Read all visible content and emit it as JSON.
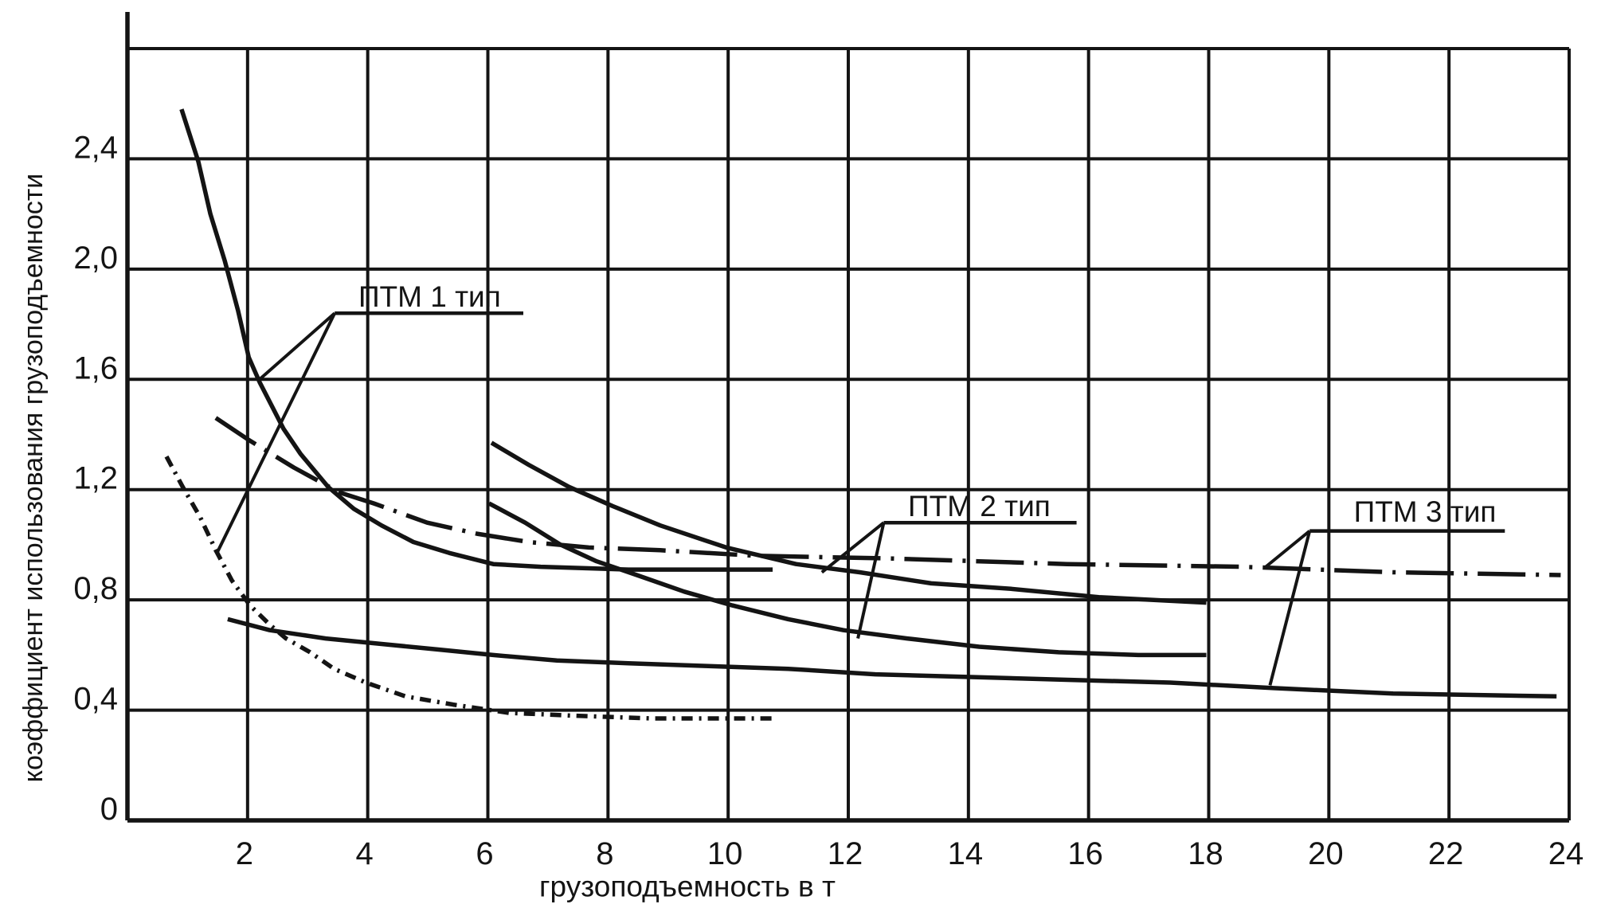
{
  "chart_data": {
    "type": "line",
    "title": "",
    "xlabel": "грузоподъемность в т",
    "ylabel": "коэффициент использования грузоподъемности",
    "xlim": [
      0,
      24
    ],
    "ylim": [
      0,
      2.8
    ],
    "grid": true,
    "legend_position": "none",
    "decimal_separator": ",",
    "ink_color": "#141414",
    "background_color": "#ffffff",
    "x_ticks": [
      {
        "t": 2,
        "label": "2"
      },
      {
        "t": 4,
        "label": "4"
      },
      {
        "t": 6,
        "label": "6"
      },
      {
        "t": 8,
        "label": "8"
      },
      {
        "t": 10,
        "label": "10"
      },
      {
        "t": 12,
        "label": "12"
      },
      {
        "t": 14,
        "label": "14"
      },
      {
        "t": 16,
        "label": "16"
      },
      {
        "t": 18,
        "label": "18"
      },
      {
        "t": 20,
        "label": "20"
      },
      {
        "t": 22,
        "label": "22"
      },
      {
        "t": 24,
        "label": "24"
      }
    ],
    "y_ticks": [
      {
        "v": 0,
        "label": "0"
      },
      {
        "v": 0.4,
        "label": "0,4"
      },
      {
        "v": 0.8,
        "label": "0,8"
      },
      {
        "v": 1.2,
        "label": "1,2"
      },
      {
        "v": 1.6,
        "label": "1,6"
      },
      {
        "v": 2.0,
        "label": "2,0"
      },
      {
        "v": 2.4,
        "label": "2,4"
      }
    ],
    "grid_v_values": [
      0.4,
      0.8,
      1.2,
      1.6,
      2.0,
      2.4,
      2.8
    ],
    "grid_t_values": [
      2,
      4,
      6,
      8,
      10,
      12,
      14,
      16,
      18,
      20,
      22,
      24
    ],
    "series": [
      {
        "id": "ptm1-curve-a",
        "group": "ПТМ 1 тип",
        "style": "solid",
        "points": [
          [
            0.9,
            2.58
          ],
          [
            1.18,
            2.39
          ],
          [
            1.38,
            2.2
          ],
          [
            1.62,
            2.03
          ],
          [
            1.84,
            1.85
          ],
          [
            2.02,
            1.68
          ],
          [
            2.2,
            1.59
          ],
          [
            2.6,
            1.42
          ],
          [
            2.88,
            1.33
          ],
          [
            3.34,
            1.21
          ],
          [
            3.77,
            1.13
          ],
          [
            4.23,
            1.07
          ],
          [
            4.76,
            1.01
          ],
          [
            5.36,
            0.97
          ],
          [
            6.09,
            0.93
          ],
          [
            6.88,
            0.92
          ],
          [
            8.34,
            0.91
          ],
          [
            9.8,
            0.91
          ],
          [
            10.74,
            0.91
          ]
        ]
      },
      {
        "id": "ptm1-curve-b",
        "group": "ПТМ 1 тип",
        "style": "dash-dot-short",
        "points": [
          [
            0.65,
            1.32
          ],
          [
            0.92,
            1.21
          ],
          [
            1.21,
            1.1
          ],
          [
            1.47,
            0.98
          ],
          [
            1.74,
            0.87
          ],
          [
            2.04,
            0.78
          ],
          [
            2.37,
            0.71
          ],
          [
            2.64,
            0.66
          ],
          [
            3.04,
            0.61
          ],
          [
            3.44,
            0.55
          ],
          [
            3.97,
            0.5
          ],
          [
            4.63,
            0.45
          ],
          [
            5.42,
            0.42
          ],
          [
            6.35,
            0.39
          ],
          [
            7.41,
            0.38
          ],
          [
            8.74,
            0.37
          ],
          [
            10.8,
            0.37
          ]
        ]
      },
      {
        "id": "ptm2-curve-a",
        "group": "ПТМ 2 тип",
        "style": "solid",
        "points": [
          [
            6.06,
            1.37
          ],
          [
            6.68,
            1.29
          ],
          [
            7.35,
            1.21
          ],
          [
            8.08,
            1.14
          ],
          [
            8.87,
            1.07
          ],
          [
            9.97,
            0.99
          ],
          [
            11.13,
            0.93
          ],
          [
            12.19,
            0.9
          ],
          [
            13.38,
            0.86
          ],
          [
            14.71,
            0.84
          ],
          [
            16.17,
            0.81
          ],
          [
            17.96,
            0.79
          ]
        ]
      },
      {
        "id": "ptm2-curve-b",
        "group": "ПТМ 2 тип",
        "style": "solid",
        "points": [
          [
            6.02,
            1.15
          ],
          [
            6.62,
            1.08
          ],
          [
            7.21,
            1.0
          ],
          [
            7.81,
            0.94
          ],
          [
            8.48,
            0.89
          ],
          [
            9.27,
            0.83
          ],
          [
            10.07,
            0.78
          ],
          [
            11.0,
            0.73
          ],
          [
            11.92,
            0.69
          ],
          [
            12.98,
            0.66
          ],
          [
            14.18,
            0.63
          ],
          [
            15.5,
            0.61
          ],
          [
            16.83,
            0.6
          ],
          [
            17.96,
            0.6
          ]
        ]
      },
      {
        "id": "ptm3-curve-a",
        "group": "ПТМ 3 тип",
        "style": "dash-dot-long",
        "points": [
          [
            1.47,
            1.46
          ],
          [
            2.02,
            1.38
          ],
          [
            2.77,
            1.28
          ],
          [
            3.53,
            1.19
          ],
          [
            4.1,
            1.15
          ],
          [
            4.99,
            1.08
          ],
          [
            5.82,
            1.04
          ],
          [
            6.68,
            1.01
          ],
          [
            7.68,
            0.99
          ],
          [
            8.87,
            0.98
          ],
          [
            10.46,
            0.96
          ],
          [
            12.72,
            0.95
          ],
          [
            15.64,
            0.93
          ],
          [
            18.55,
            0.92
          ],
          [
            21.07,
            0.9
          ],
          [
            23.86,
            0.89
          ]
        ]
      },
      {
        "id": "ptm3-curve-b",
        "group": "ПТМ 3 тип",
        "style": "solid",
        "points": [
          [
            1.67,
            0.73
          ],
          [
            2.37,
            0.69
          ],
          [
            3.3,
            0.66
          ],
          [
            4.23,
            0.64
          ],
          [
            5.16,
            0.62
          ],
          [
            6.09,
            0.6
          ],
          [
            7.15,
            0.58
          ],
          [
            8.34,
            0.57
          ],
          [
            9.67,
            0.56
          ],
          [
            11.0,
            0.55
          ],
          [
            12.45,
            0.53
          ],
          [
            14.04,
            0.52
          ],
          [
            15.64,
            0.51
          ],
          [
            17.36,
            0.5
          ],
          [
            19.08,
            0.48
          ],
          [
            21.07,
            0.46
          ],
          [
            23.79,
            0.45
          ]
        ]
      }
    ],
    "annotations": [
      {
        "id": "label-ptm-1",
        "text": "ПТМ 1 тип",
        "text_center": [
          5.03,
          1.9
        ],
        "corner": [
          3.45,
          1.84
        ],
        "underline_end": [
          6.59,
          1.84
        ],
        "targets": [
          [
            2.2,
            1.6
          ],
          [
            1.49,
            0.97
          ]
        ]
      },
      {
        "id": "label-ptm-2",
        "text": "ПТМ 2 тип",
        "text_center": [
          14.18,
          1.14
        ],
        "corner": [
          12.59,
          1.08
        ],
        "underline_end": [
          15.8,
          1.08
        ],
        "targets": [
          [
            11.56,
            0.9
          ],
          [
            12.16,
            0.66
          ]
        ]
      },
      {
        "id": "label-ptm-3",
        "text": "ПТМ 3 тип",
        "text_center": [
          21.6,
          1.12
        ],
        "corner": [
          19.68,
          1.05
        ],
        "underline_end": [
          22.93,
          1.05
        ],
        "targets": [
          [
            18.95,
            0.92
          ],
          [
            19.02,
            0.49
          ]
        ]
      }
    ]
  }
}
